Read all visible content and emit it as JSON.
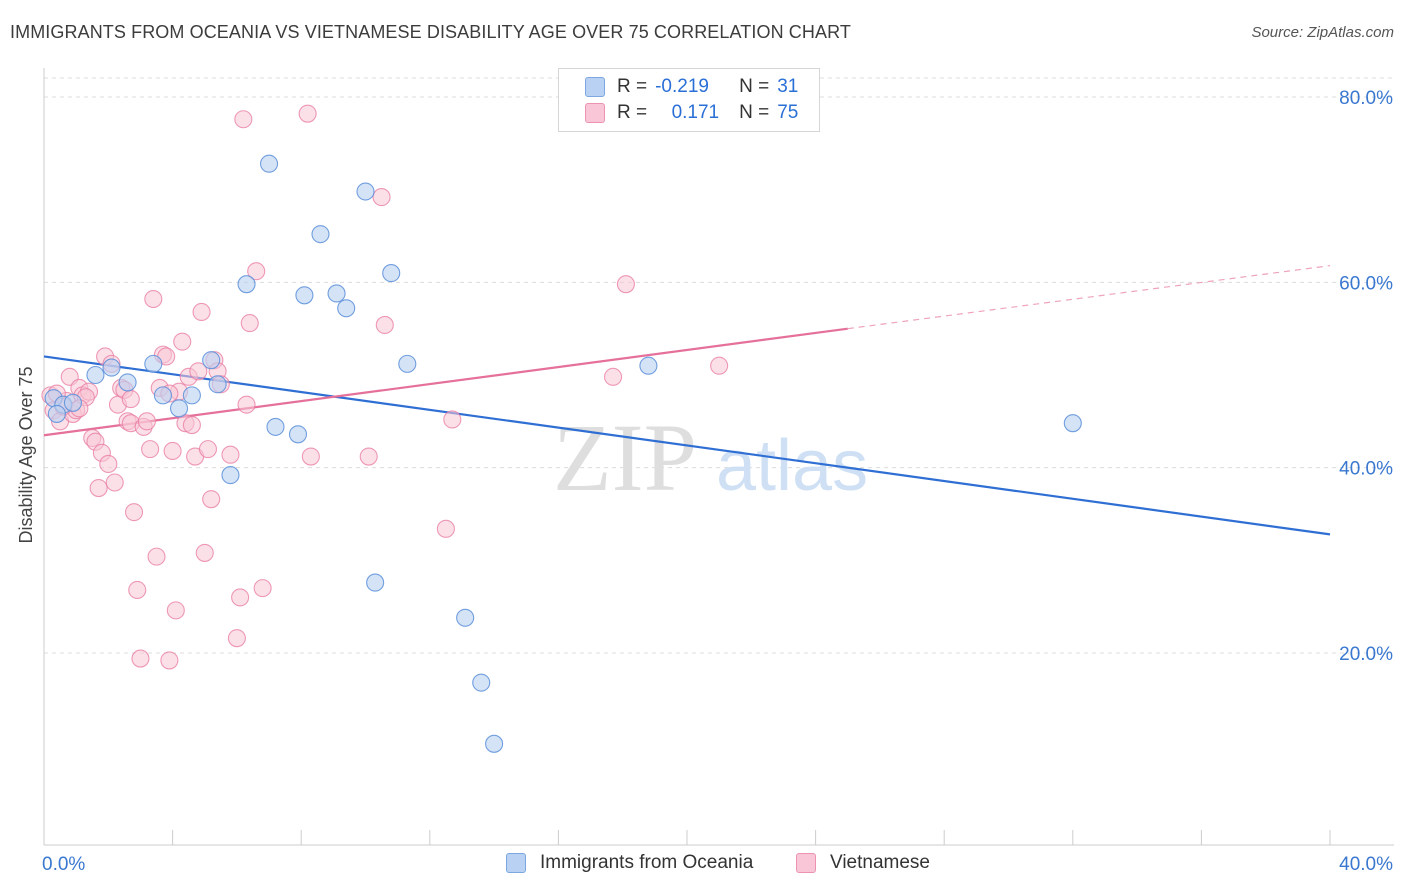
{
  "title": "IMMIGRANTS FROM OCEANIA VS VIETNAMESE DISABILITY AGE OVER 75 CORRELATION CHART",
  "source": "Source: ZipAtlas.com",
  "watermark": {
    "zip": "ZIP",
    "atlas": "atlas"
  },
  "legend": {
    "rows": [
      {
        "r_label": "R =",
        "r_value": "-0.219",
        "n_label": "N =",
        "n_value": "31",
        "color": "#a9c8f0"
      },
      {
        "r_label": "R =",
        "r_value": "0.171",
        "n_label": "N =",
        "n_value": "75",
        "color": "#f5b8cb"
      }
    ]
  },
  "bottom_legend": [
    "Immigrants from Oceania",
    "Vietnamese"
  ],
  "chart_data": {
    "type": "scatter",
    "ylabel": "Disability Age Over 75",
    "xlabel": "",
    "xlim": [
      0,
      40
    ],
    "ylim": [
      0,
      85
    ],
    "x_tick_labels": [
      "0.0%",
      "40.0%"
    ],
    "y_ticks": [
      20,
      40,
      60,
      80
    ],
    "y_tick_labels": [
      "20.0%",
      "40.0%",
      "60.0%",
      "80.0%"
    ],
    "grid": "horizontal dashed",
    "colors": {
      "oceania": "#5b8fd9",
      "oceania_fill": "#b9d1f2",
      "vietnamese": "#e87aa0",
      "vietnamese_fill": "#f8c6d6",
      "axis_text": "#3a78d0"
    },
    "series": [
      {
        "name": "Immigrants from Oceania",
        "trend": {
          "x": [
            0,
            40
          ],
          "y": [
            52.0,
            32.8
          ]
        },
        "points": [
          [
            0.3,
            47.5
          ],
          [
            0.6,
            46.8
          ],
          [
            0.4,
            45.8
          ],
          [
            1.6,
            50.0
          ],
          [
            2.1,
            50.8
          ],
          [
            2.6,
            49.2
          ],
          [
            3.4,
            51.2
          ],
          [
            3.7,
            47.8
          ],
          [
            4.2,
            46.4
          ],
          [
            4.6,
            47.8
          ],
          [
            5.2,
            51.6
          ],
          [
            5.4,
            49.0
          ],
          [
            5.8,
            39.2
          ],
          [
            6.3,
            59.8
          ],
          [
            7.0,
            72.8
          ],
          [
            7.2,
            44.4
          ],
          [
            7.9,
            43.6
          ],
          [
            8.1,
            58.6
          ],
          [
            8.6,
            65.2
          ],
          [
            9.1,
            58.8
          ],
          [
            9.4,
            57.2
          ],
          [
            10.0,
            69.8
          ],
          [
            10.3,
            27.6
          ],
          [
            10.8,
            61.0
          ],
          [
            11.3,
            51.2
          ],
          [
            13.1,
            23.8
          ],
          [
            13.6,
            16.8
          ],
          [
            14.0,
            10.2
          ],
          [
            18.8,
            51.0
          ],
          [
            32.0,
            44.8
          ],
          [
            0.9,
            47.0
          ]
        ]
      },
      {
        "name": "Vietnamese",
        "trend": {
          "x": [
            0,
            25
          ],
          "y": [
            43.5,
            55.0
          ]
        },
        "trend_dashed": {
          "x": [
            25,
            40
          ],
          "y": [
            55.0,
            61.8
          ]
        },
        "points": [
          [
            0.2,
            47.8
          ],
          [
            0.3,
            46.2
          ],
          [
            0.5,
            45.0
          ],
          [
            0.7,
            47.2
          ],
          [
            0.8,
            49.8
          ],
          [
            0.9,
            45.8
          ],
          [
            1.0,
            46.2
          ],
          [
            1.1,
            48.6
          ],
          [
            1.2,
            47.8
          ],
          [
            1.4,
            48.2
          ],
          [
            1.5,
            43.2
          ],
          [
            1.6,
            42.8
          ],
          [
            1.7,
            37.8
          ],
          [
            1.8,
            41.6
          ],
          [
            1.9,
            52.0
          ],
          [
            2.0,
            40.4
          ],
          [
            2.1,
            51.2
          ],
          [
            2.2,
            38.4
          ],
          [
            2.3,
            46.8
          ],
          [
            2.4,
            48.6
          ],
          [
            2.5,
            48.4
          ],
          [
            2.6,
            45.0
          ],
          [
            2.7,
            44.8
          ],
          [
            2.8,
            35.2
          ],
          [
            2.9,
            26.8
          ],
          [
            3.0,
            19.4
          ],
          [
            3.1,
            44.4
          ],
          [
            3.2,
            45.0
          ],
          [
            3.3,
            42.0
          ],
          [
            3.4,
            58.2
          ],
          [
            3.5,
            30.4
          ],
          [
            3.6,
            48.6
          ],
          [
            3.7,
            52.2
          ],
          [
            3.8,
            52.0
          ],
          [
            3.9,
            19.2
          ],
          [
            4.0,
            41.8
          ],
          [
            4.1,
            24.6
          ],
          [
            4.2,
            48.2
          ],
          [
            4.3,
            53.6
          ],
          [
            4.4,
            44.8
          ],
          [
            4.5,
            49.8
          ],
          [
            4.6,
            44.6
          ],
          [
            4.7,
            41.2
          ],
          [
            4.8,
            50.4
          ],
          [
            4.9,
            56.8
          ],
          [
            5.0,
            30.8
          ],
          [
            5.1,
            42.0
          ],
          [
            5.2,
            36.6
          ],
          [
            5.3,
            51.6
          ],
          [
            5.4,
            50.4
          ],
          [
            5.5,
            49.0
          ],
          [
            5.8,
            41.4
          ],
          [
            6.0,
            21.6
          ],
          [
            6.1,
            26.0
          ],
          [
            6.2,
            77.6
          ],
          [
            6.3,
            46.8
          ],
          [
            6.4,
            55.6
          ],
          [
            6.6,
            61.2
          ],
          [
            6.8,
            27.0
          ],
          [
            8.2,
            78.2
          ],
          [
            8.3,
            41.2
          ],
          [
            10.1,
            41.2
          ],
          [
            10.5,
            69.2
          ],
          [
            10.6,
            55.4
          ],
          [
            12.5,
            33.4
          ],
          [
            12.7,
            45.2
          ],
          [
            17.7,
            49.8
          ],
          [
            18.1,
            59.8
          ],
          [
            21.0,
            51.0
          ],
          [
            0.4,
            48.0
          ],
          [
            0.6,
            46.6
          ],
          [
            1.3,
            47.6
          ],
          [
            2.7,
            47.4
          ],
          [
            3.9,
            48.0
          ],
          [
            1.1,
            46.4
          ]
        ]
      }
    ]
  }
}
